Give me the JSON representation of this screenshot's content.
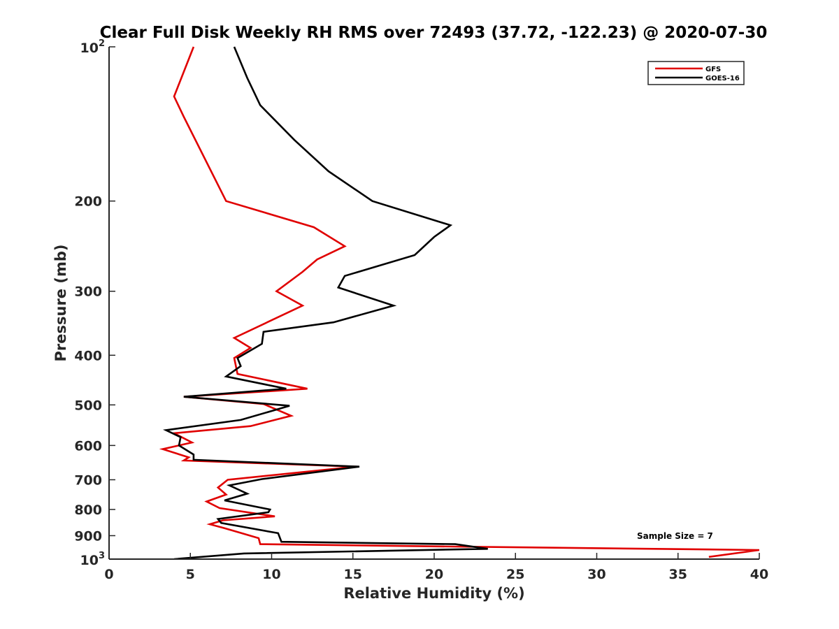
{
  "chart_data": {
    "type": "line",
    "title": "Clear Full Disk Weekly RH RMS over 72493 (37.72, -122.23) @ 2020-07-30",
    "xlabel": "Relative Humidity (%)",
    "ylabel": "Pressure (mb)",
    "xlim": [
      0,
      40
    ],
    "ylim": [
      100,
      1000
    ],
    "y_scale": "log",
    "y_reversed": true,
    "x_ticks": [
      0,
      5,
      10,
      15,
      20,
      25,
      30,
      35,
      40
    ],
    "x_tick_labels": [
      "0",
      "5",
      "10",
      "15",
      "20",
      "25",
      "30",
      "35",
      "40"
    ],
    "y_ticks": [
      200,
      300,
      400,
      500,
      600,
      700,
      800,
      900
    ],
    "y_tick_labels": [
      "200",
      "300",
      "400",
      "500",
      "600",
      "700",
      "800",
      "900"
    ],
    "y_tick_decades": [
      {
        "value": 100,
        "base": "10",
        "exp": "2"
      },
      {
        "value": 1000,
        "base": "10",
        "exp": "3"
      }
    ],
    "grid": false,
    "legend_position": "top-right",
    "annotation": "Sample Size = 7",
    "series": [
      {
        "name": "GFS",
        "color": "#e00000",
        "points": [
          [
            5.2,
            100
          ],
          [
            4.0,
            125
          ],
          [
            4.6,
            137
          ],
          [
            7.2,
            200
          ],
          [
            12.6,
            225
          ],
          [
            14.5,
            245
          ],
          [
            12.8,
            260
          ],
          [
            11.9,
            275
          ],
          [
            10.3,
            300
          ],
          [
            11.9,
            320
          ],
          [
            7.7,
            370
          ],
          [
            8.7,
            387
          ],
          [
            7.7,
            405
          ],
          [
            7.9,
            435
          ],
          [
            12.2,
            465
          ],
          [
            4.6,
            482
          ],
          [
            9.5,
            498
          ],
          [
            11.2,
            525
          ],
          [
            8.7,
            550
          ],
          [
            4.0,
            568
          ],
          [
            5.1,
            592
          ],
          [
            3.3,
            610
          ],
          [
            4.9,
            633
          ],
          [
            4.6,
            642
          ],
          [
            15.2,
            660
          ],
          [
            7.3,
            700
          ],
          [
            6.7,
            725
          ],
          [
            7.2,
            748
          ],
          [
            6.0,
            772
          ],
          [
            6.8,
            795
          ],
          [
            10.2,
            825
          ],
          [
            7.0,
            840
          ],
          [
            6.2,
            855
          ],
          [
            7.1,
            870
          ],
          [
            9.2,
            910
          ],
          [
            9.3,
            935
          ],
          [
            21.0,
            945
          ],
          [
            40.0,
            960
          ],
          [
            36.9,
            990
          ]
        ]
      },
      {
        "name": "GOES-16",
        "color": "#000000",
        "points": [
          [
            7.7,
            100
          ],
          [
            8.5,
            115
          ],
          [
            9.3,
            130
          ],
          [
            11.4,
            152
          ],
          [
            13.5,
            175
          ],
          [
            16.2,
            200
          ],
          [
            21.0,
            223
          ],
          [
            20.0,
            235
          ],
          [
            18.8,
            255
          ],
          [
            14.5,
            280
          ],
          [
            14.1,
            295
          ],
          [
            17.5,
            320
          ],
          [
            13.8,
            345
          ],
          [
            9.5,
            360
          ],
          [
            9.4,
            380
          ],
          [
            7.9,
            405
          ],
          [
            8.1,
            420
          ],
          [
            7.2,
            440
          ],
          [
            10.9,
            465
          ],
          [
            4.6,
            482
          ],
          [
            11.1,
            502
          ],
          [
            8.1,
            535
          ],
          [
            3.5,
            560
          ],
          [
            4.4,
            578
          ],
          [
            4.3,
            600
          ],
          [
            5.2,
            625
          ],
          [
            5.2,
            640
          ],
          [
            15.4,
            660
          ],
          [
            9.4,
            698
          ],
          [
            7.4,
            718
          ],
          [
            8.5,
            745
          ],
          [
            7.1,
            768
          ],
          [
            9.9,
            800
          ],
          [
            9.8,
            810
          ],
          [
            6.7,
            835
          ],
          [
            6.9,
            850
          ],
          [
            10.4,
            890
          ],
          [
            10.6,
            925
          ],
          [
            21.3,
            935
          ],
          [
            23.3,
            955
          ],
          [
            8.3,
            975
          ],
          [
            4.0,
            1000
          ]
        ]
      }
    ]
  }
}
